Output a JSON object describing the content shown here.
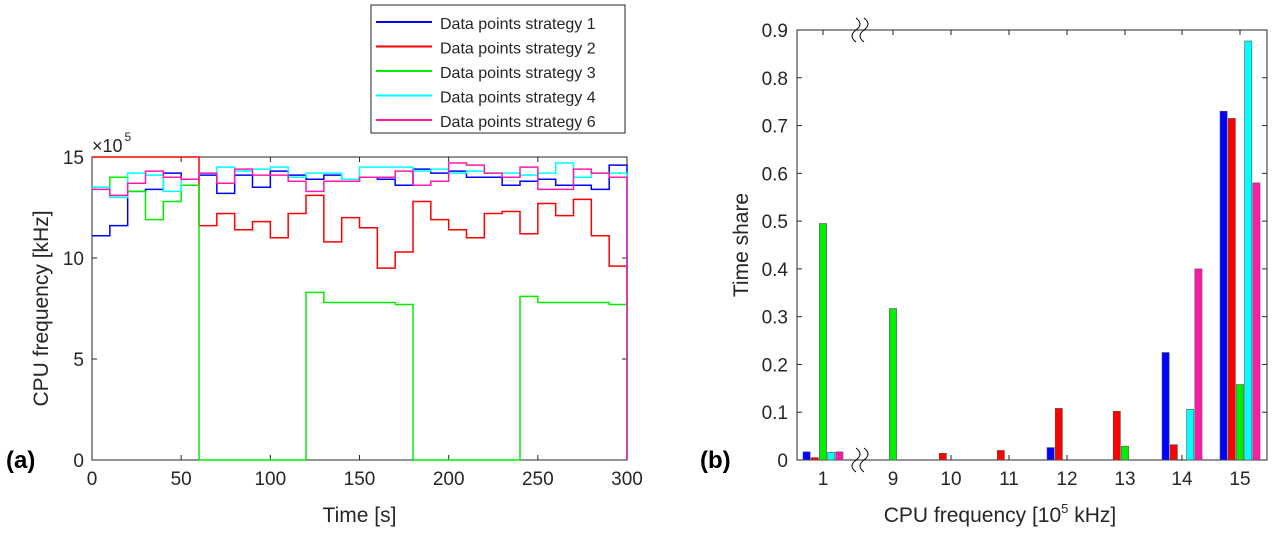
{
  "chart_data": [
    {
      "type": "line",
      "panel_label": "(a)",
      "xlabel": "Time [s]",
      "ylabel": "CPU frequency [kHz]",
      "y_multiplier": "×10",
      "y_multiplier_exp": "5",
      "xlim": [
        0,
        300
      ],
      "ylim": [
        0,
        15
      ],
      "xticks": [
        "0",
        "50",
        "100",
        "150",
        "200",
        "250",
        "300"
      ],
      "yticks": [
        "0",
        "5",
        "10",
        "15"
      ],
      "step_seconds": 10,
      "legend_position": "top-right",
      "series": [
        {
          "name": "Data points strategy 1",
          "color": "#0000ff",
          "values": [
            11.1,
            11.6,
            13.3,
            13.4,
            14.2,
            13.9,
            14.1,
            13.2,
            14.1,
            13.5,
            14.3,
            14.1,
            13.9,
            14.1,
            13.9,
            14.0,
            13.9,
            13.6,
            14.4,
            14.2,
            14.3,
            14.0,
            14.0,
            13.6,
            13.8,
            13.9,
            13.6,
            13.6,
            13.4,
            14.6
          ]
        },
        {
          "name": "Data points strategy 2",
          "color": "#ff0000",
          "values": [
            15.0,
            15.0,
            15.0,
            15.0,
            15.0,
            15.0,
            11.6,
            12.2,
            11.4,
            11.8,
            11.0,
            12.2,
            13.1,
            10.8,
            12.0,
            11.5,
            9.5,
            10.3,
            12.8,
            11.9,
            11.4,
            11.0,
            12.2,
            12.3,
            11.2,
            12.7,
            12.1,
            12.9,
            11.1,
            9.6
          ]
        },
        {
          "name": "Data points strategy 3",
          "color": "#00ee00",
          "values": [
            13.4,
            14.0,
            13.3,
            11.9,
            12.8,
            13.6,
            0,
            0,
            0,
            0,
            0,
            0,
            8.3,
            7.8,
            7.8,
            7.8,
            7.8,
            7.7,
            0,
            0,
            0,
            0,
            0,
            0,
            8.1,
            7.8,
            7.8,
            7.8,
            7.8,
            7.7
          ]
        },
        {
          "name": "Data points strategy 4",
          "color": "#00ffff",
          "values": [
            13.5,
            13.0,
            14.2,
            14.1,
            13.3,
            13.9,
            14.2,
            14.5,
            14.3,
            14.4,
            14.5,
            14.0,
            14.2,
            14.2,
            13.9,
            14.5,
            14.5,
            14.5,
            14.3,
            14.4,
            14.2,
            14.3,
            14.2,
            14.2,
            14.1,
            14.2,
            14.7,
            14.0,
            14.2,
            14.2
          ]
        },
        {
          "name": "Data points strategy 6",
          "color": "#ff1aa8",
          "values": [
            13.4,
            13.1,
            13.7,
            14.3,
            14.0,
            13.9,
            14.2,
            13.7,
            14.4,
            14.1,
            14.1,
            13.8,
            13.3,
            13.8,
            13.8,
            14.0,
            14.0,
            14.3,
            13.6,
            13.8,
            14.7,
            14.6,
            14.2,
            14.0,
            14.5,
            13.4,
            13.4,
            14.4,
            14.2,
            14.0
          ]
        }
      ]
    },
    {
      "type": "bar",
      "panel_label": "(b)",
      "xlabel": "CPU frequency [10",
      "xlabel_exp": "5",
      "xlabel_suffix": " kHz]",
      "ylabel": "Time share",
      "ylim": [
        0,
        0.9
      ],
      "yticks": [
        "0",
        "0.1",
        "0.2",
        "0.3",
        "0.4",
        "0.5",
        "0.6",
        "0.7",
        "0.8",
        "0.9"
      ],
      "categories": [
        "1",
        "9",
        "10",
        "11",
        "12",
        "13",
        "14",
        "15"
      ],
      "axis_break_between": [
        "1",
        "9"
      ],
      "series": [
        {
          "name": "Data points strategy 1",
          "color": "#0000ff",
          "values": [
            0.017,
            0,
            0,
            0,
            0.026,
            0,
            0.225,
            0.73
          ]
        },
        {
          "name": "Data points strategy 2",
          "color": "#ff0000",
          "values": [
            0.005,
            0,
            0.014,
            0.02,
            0.108,
            0.102,
            0.032,
            0.715
          ]
        },
        {
          "name": "Data points strategy 3",
          "color": "#00ee00",
          "values": [
            0.495,
            0.317,
            0,
            0,
            0,
            0.029,
            0,
            0.158
          ]
        },
        {
          "name": "Data points strategy 4",
          "color": "#00ffff",
          "values": [
            0.016,
            0,
            0,
            0,
            0,
            0,
            0.106,
            0.877
          ]
        },
        {
          "name": "Data points strategy 6",
          "color": "#ff1aa8",
          "values": [
            0.017,
            0,
            0,
            0,
            0,
            0,
            0.4,
            0.58
          ]
        }
      ]
    }
  ]
}
